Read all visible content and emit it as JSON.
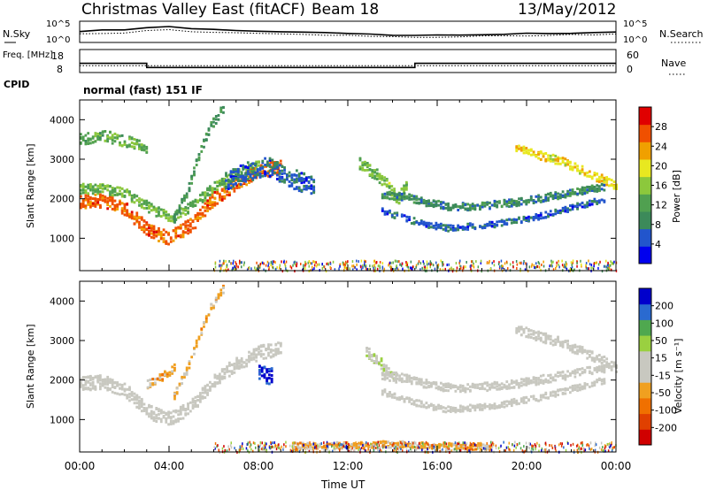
{
  "header": {
    "title": "Christmas Valley East (fitACF)",
    "beam": "Beam 18",
    "date": "13/May/2012"
  },
  "colors": {
    "power_scale": [
      "#0000ee",
      "#2255cc",
      "#3c8a5a",
      "#50a050",
      "#8cc83c",
      "#e8e820",
      "#f0a000",
      "#f05000",
      "#e00000"
    ],
    "velocity_scale": [
      "#0000cc",
      "#2a6ad0",
      "#4fa84f",
      "#9ad040",
      "#c8c8c0",
      "#c8c8c0",
      "#f0a020",
      "#f07000",
      "#e04000",
      "#d00000"
    ]
  },
  "chart_data": [
    {
      "type": "line",
      "name": "noise-panel",
      "left_label": "N.Sky",
      "right_label": "N.Search",
      "left_ticks": [
        "10^5",
        "10^0"
      ],
      "right_ticks": [
        "10^5",
        "10^0"
      ],
      "series": [
        {
          "name": "N.Sky",
          "style": "solid",
          "x": [
            0,
            1,
            2,
            3,
            4,
            5,
            6,
            7,
            8,
            9,
            10,
            11,
            12,
            13,
            14,
            15,
            16,
            17,
            18,
            19,
            20,
            21,
            22,
            23,
            24
          ],
          "y": [
            2.6,
            2.9,
            3.0,
            3.6,
            3.8,
            3.3,
            3.0,
            2.9,
            2.7,
            2.6,
            2.5,
            2.3,
            2.2,
            1.9,
            1.7,
            1.6,
            1.7,
            1.8,
            1.9,
            2.0,
            2.1,
            2.1,
            2.2,
            2.3,
            2.4
          ]
        },
        {
          "name": "N.Search",
          "style": "dotted",
          "x": [
            0,
            1,
            2,
            3,
            4,
            5,
            6,
            7,
            8,
            9,
            10,
            11,
            12,
            13,
            14,
            15,
            16,
            17,
            18,
            19,
            20,
            21,
            22,
            23,
            24
          ],
          "y": [
            2.0,
            2.2,
            2.3,
            2.8,
            3.0,
            2.6,
            2.3,
            2.2,
            2.1,
            2.0,
            1.9,
            1.8,
            1.7,
            1.5,
            1.3,
            1.2,
            1.3,
            1.4,
            1.5,
            1.6,
            1.6,
            1.7,
            1.8,
            1.8,
            1.9
          ]
        }
      ],
      "ylim": [
        0,
        5
      ]
    },
    {
      "type": "line",
      "name": "frequency-panel",
      "left_label": "Freq. [MHz]",
      "right_label": "Nave",
      "left_ticks": [
        "18",
        "8"
      ],
      "right_ticks": [
        "60",
        "0"
      ],
      "series": [
        {
          "name": "Freq",
          "style": "solid",
          "x": [
            0,
            3,
            3,
            15,
            15,
            24
          ],
          "y": [
            12,
            12,
            10.2,
            10.2,
            12,
            12
          ]
        },
        {
          "name": "Nave",
          "style": "dotted",
          "x": [
            0,
            24
          ],
          "y": [
            18,
            18
          ]
        }
      ]
    },
    {
      "type": "heatmap",
      "name": "power-panel",
      "cpid_label": "CPID",
      "cpid_text": "normal (fast) 151 IF",
      "ylabel": "Slant Range [km]",
      "yticks": [
        "4000",
        "3000",
        "2000",
        "1000"
      ],
      "ylim": [
        180,
        4500
      ],
      "xlim": [
        0,
        24
      ],
      "colorbar_label": "Power [dB]",
      "colorbar_ticks": [
        "28",
        "24",
        "20",
        "16",
        "12",
        "8",
        "4"
      ],
      "colorbar_range": [
        0,
        32
      ],
      "bands": [
        {
          "x": [
            0,
            1,
            2,
            3,
            4,
            5,
            6,
            7,
            8,
            9
          ],
          "y": [
            1900,
            1950,
            1750,
            1200,
            1000,
            1350,
            2000,
            2400,
            2700,
            2800
          ],
          "w": 250,
          "v": 26
        },
        {
          "x": [
            0,
            1,
            2,
            3,
            4,
            5,
            6,
            7,
            8
          ],
          "y": [
            2250,
            2250,
            2150,
            1800,
            1500,
            1800,
            2300,
            2600,
            2850
          ],
          "w": 180,
          "v": 14
        },
        {
          "x": [
            0,
            1,
            2,
            3
          ],
          "y": [
            3500,
            3600,
            3450,
            3300
          ],
          "w": 200,
          "v": 13
        },
        {
          "x": [
            4.2,
            4.8,
            5.3,
            5.8,
            6.4
          ],
          "y": [
            1500,
            2200,
            3100,
            3800,
            4300
          ],
          "w": 150,
          "v": 10
        },
        {
          "x": [
            6.5,
            7.5,
            8.5,
            9.5,
            10.5
          ],
          "y": [
            2400,
            2700,
            2800,
            2500,
            2300
          ],
          "w": 350,
          "v": 6
        },
        {
          "x": [
            12.5,
            13.5,
            14.2,
            14.6
          ],
          "y": [
            2900,
            2500,
            2000,
            2300
          ],
          "w": 220,
          "v": 15
        },
        {
          "x": [
            13.5,
            14.5,
            15.5,
            16.5,
            17.5,
            18.5,
            19.5,
            20.5,
            21.5,
            22.5,
            23.5
          ],
          "y": [
            2100,
            2050,
            1900,
            1800,
            1800,
            1850,
            1900,
            2000,
            2100,
            2200,
            2300
          ],
          "w": 130,
          "v": 9
        },
        {
          "x": [
            13.5,
            14.5,
            15.5,
            16.5,
            17.5,
            18.5,
            19.5,
            20.5,
            21.5,
            22.5,
            23.5
          ],
          "y": [
            1700,
            1500,
            1350,
            1250,
            1300,
            1350,
            1450,
            1550,
            1700,
            1850,
            2000
          ],
          "w": 110,
          "v": 6
        },
        {
          "x": [
            19.5,
            20.5,
            21.5,
            22.5,
            23.5,
            24
          ],
          "y": [
            3300,
            3100,
            2950,
            2700,
            2450,
            2300
          ],
          "w": 150,
          "v": 20
        }
      ]
    },
    {
      "type": "heatmap",
      "name": "velocity-panel",
      "ylabel": "Slant Range [km]",
      "yticks": [
        "4000",
        "3000",
        "2000",
        "1000"
      ],
      "ylim": [
        180,
        4500
      ],
      "xlim": [
        0,
        24
      ],
      "xticks": [
        "00:00",
        "04:00",
        "08:00",
        "12:00",
        "16:00",
        "20:00",
        "00:00"
      ],
      "xlabel": "Time UT",
      "colorbar_label": "Velocity [m s⁻¹]",
      "colorbar_ticks": [
        "200",
        "100",
        "50",
        "15",
        "-15",
        "-50",
        "-100",
        "-200"
      ],
      "colorbar_range": [
        -250,
        250
      ],
      "bands": [
        {
          "x": [
            0,
            1,
            2,
            3,
            4,
            5,
            6,
            7,
            8,
            9
          ],
          "y": [
            1900,
            1950,
            1750,
            1200,
            1000,
            1350,
            2000,
            2400,
            2700,
            2800
          ],
          "w": 250,
          "v": -5
        },
        {
          "x": [
            4.2,
            4.8,
            5.3,
            5.8,
            6.4
          ],
          "y": [
            1600,
            2300,
            3100,
            3800,
            4300
          ],
          "w": 140,
          "v": -60
        },
        {
          "x": [
            3.0,
            3.6,
            4.2
          ],
          "y": [
            1900,
            2050,
            2300
          ],
          "w": 150,
          "v": -70
        },
        {
          "x": [
            8.0,
            8.6
          ],
          "y": [
            2150,
            2100
          ],
          "w": 300,
          "v": 220
        },
        {
          "x": [
            12.8,
            13.5,
            14.2
          ],
          "y": [
            2700,
            2400,
            2000
          ],
          "w": 200,
          "v": 35
        },
        {
          "x": [
            13.5,
            14.5,
            15.5,
            16.5,
            17.5,
            18.5,
            19.5,
            20.5,
            21.5,
            22.5,
            23.5
          ],
          "y": [
            2100,
            2050,
            1900,
            1800,
            1800,
            1850,
            1900,
            2000,
            2100,
            2200,
            2300
          ],
          "w": 150,
          "v": 0
        },
        {
          "x": [
            13.5,
            14.5,
            15.5,
            16.5,
            17.5,
            18.5,
            19.5,
            20.5,
            21.5,
            22.5,
            23.5
          ],
          "y": [
            1700,
            1500,
            1350,
            1250,
            1300,
            1350,
            1450,
            1550,
            1700,
            1850,
            2000
          ],
          "w": 110,
          "v": 0
        },
        {
          "x": [
            19.5,
            20.5,
            21.5,
            22.5,
            23.5,
            24
          ],
          "y": [
            3300,
            3100,
            2950,
            2700,
            2450,
            2300
          ],
          "w": 170,
          "v": 0
        },
        {
          "x": [
            9.5,
            11,
            12.5,
            14,
            15.5,
            17,
            18.5
          ],
          "y": [
            320,
            330,
            350,
            370,
            340,
            320,
            300
          ],
          "w": 120,
          "v": -60
        }
      ]
    }
  ]
}
